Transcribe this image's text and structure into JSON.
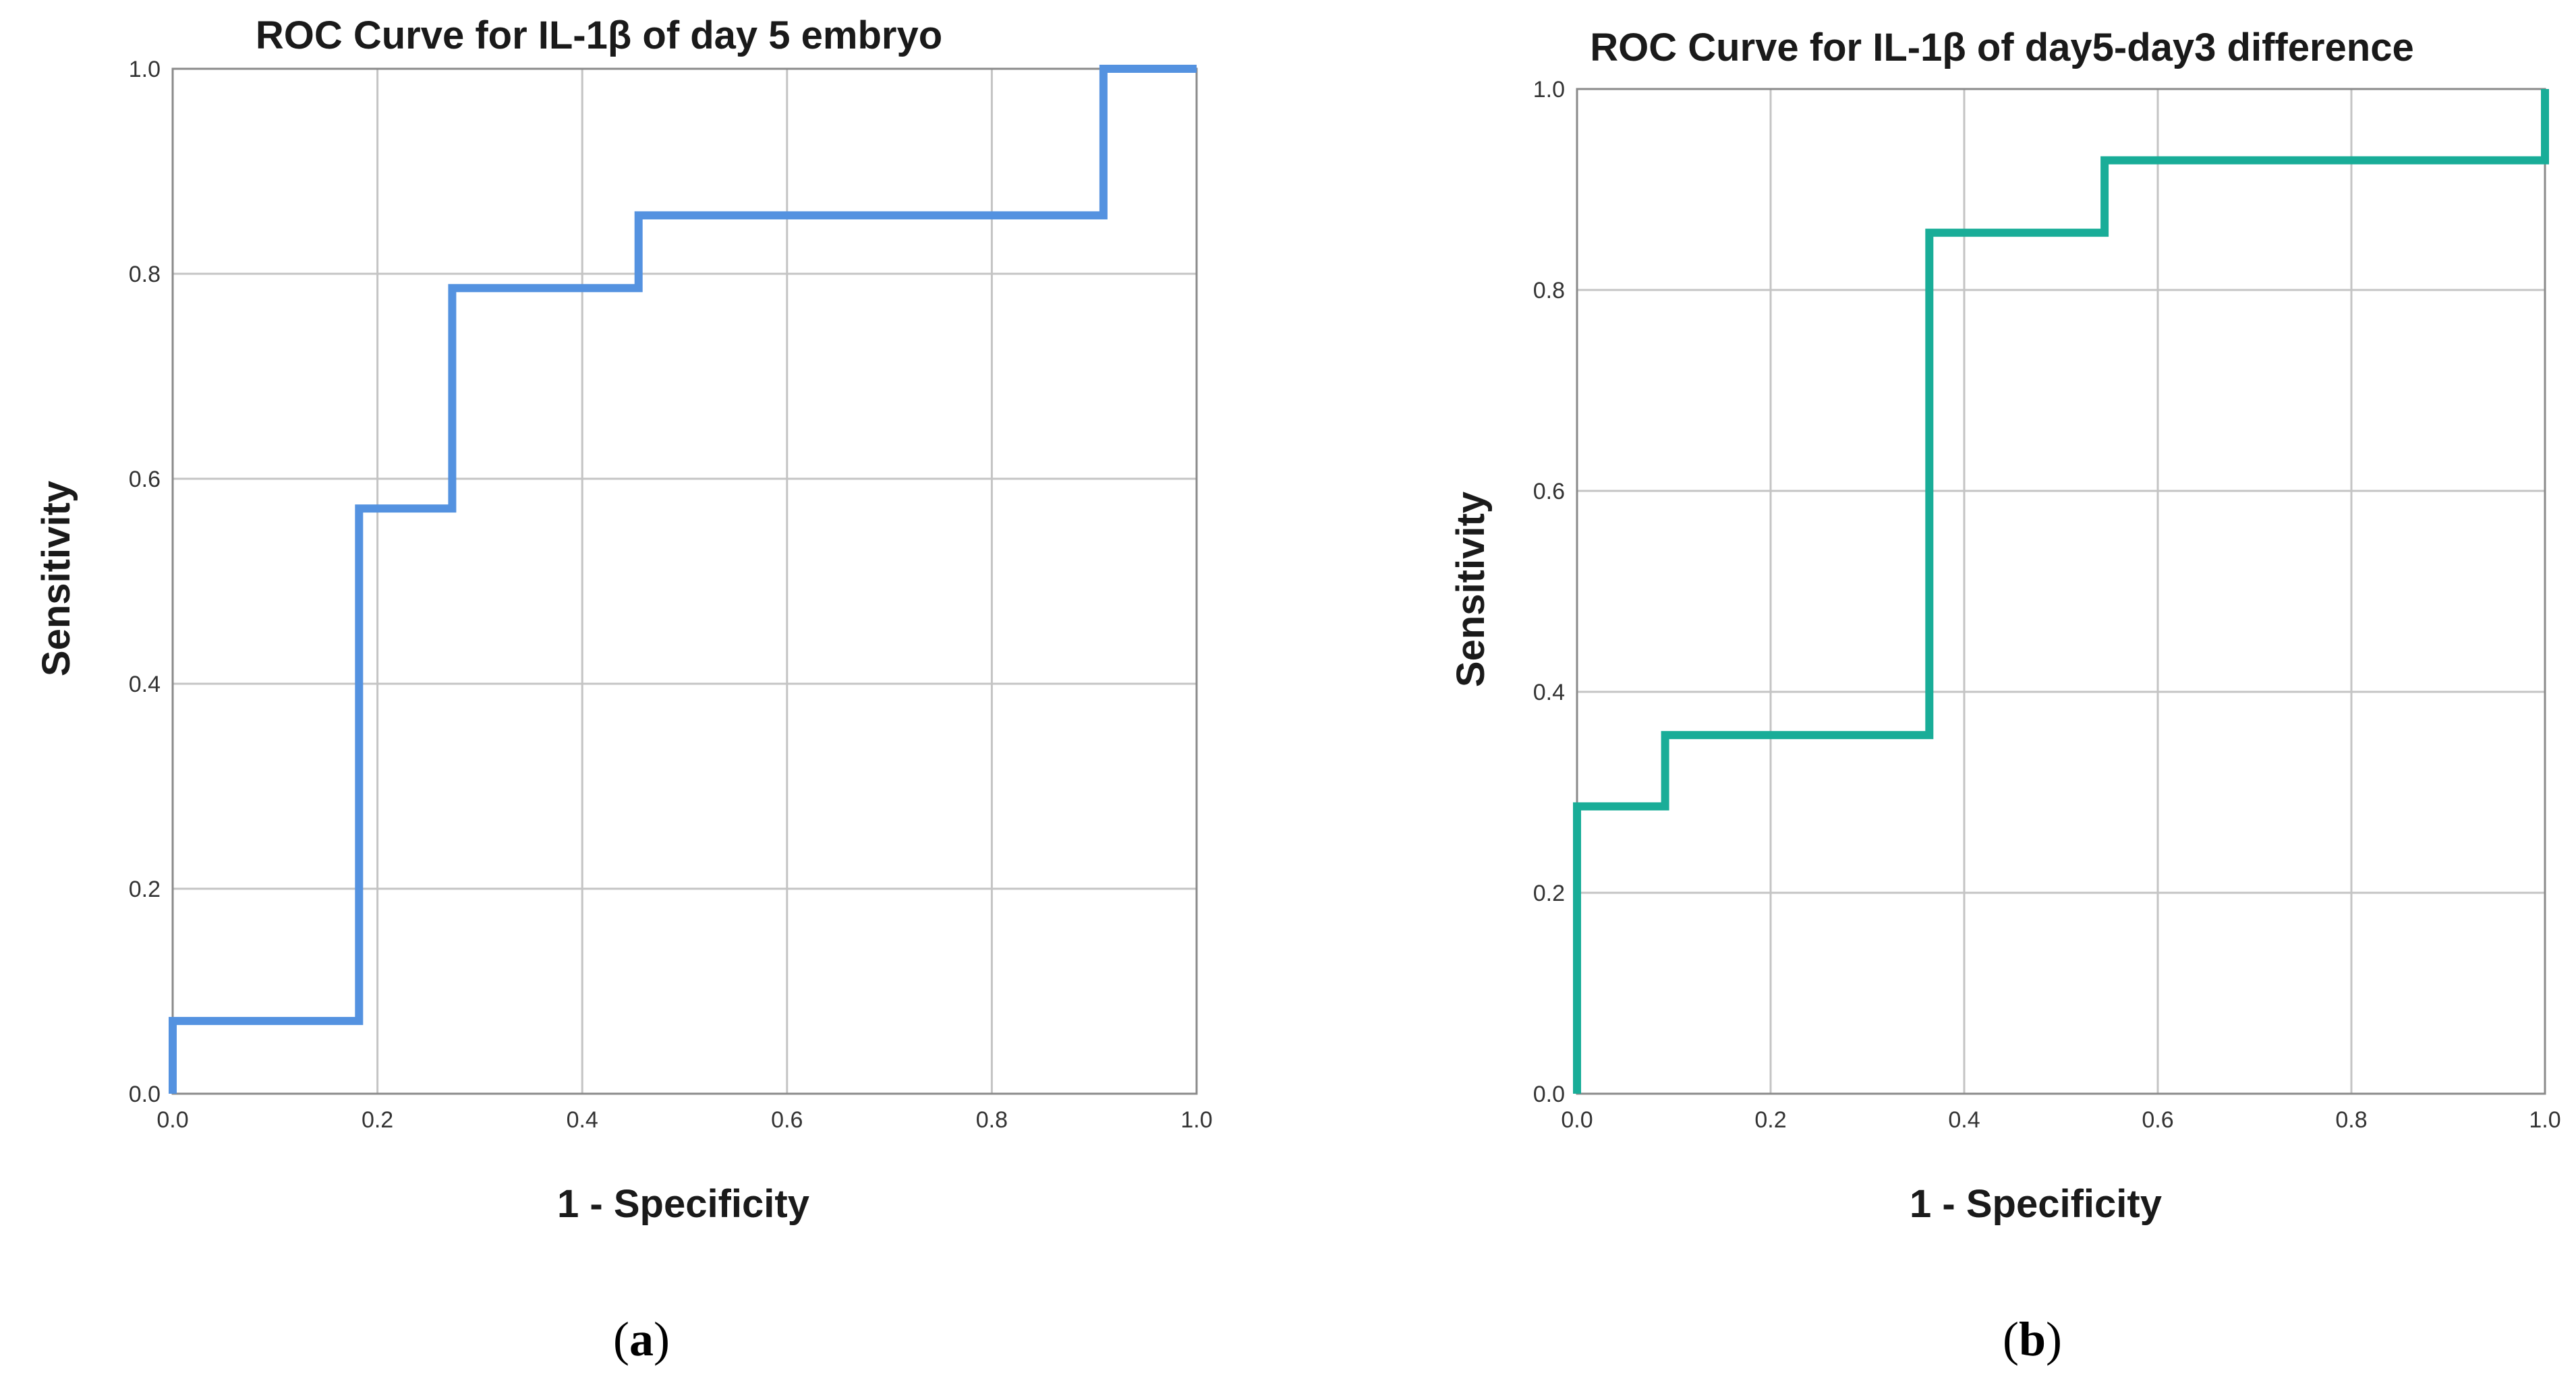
{
  "chart_data": [
    {
      "type": "line",
      "panel_label": "a",
      "title": "ROC Curve for IL-1β of day 5 embryo",
      "xlabel": "1 - Specificity",
      "ylabel": "Sensitivity",
      "xlim": [
        0,
        1
      ],
      "ylim": [
        0,
        1
      ],
      "x_ticks": [
        "0.0",
        "0.2",
        "0.4",
        "0.6",
        "0.8",
        "1.0"
      ],
      "y_ticks": [
        "0.0",
        "0.2",
        "0.4",
        "0.6",
        "0.8",
        "1.0"
      ],
      "grid": true,
      "line_color": "#5492e0",
      "series": [
        {
          "name": "IL-1β day 5",
          "x": [
            0.0,
            0.0,
            0.182,
            0.182,
            0.273,
            0.273,
            0.455,
            0.455,
            0.909,
            0.909,
            1.0
          ],
          "y": [
            0.0,
            0.071,
            0.071,
            0.571,
            0.571,
            0.786,
            0.786,
            0.857,
            0.857,
            1.0,
            1.0
          ]
        }
      ]
    },
    {
      "type": "line",
      "panel_label": "b",
      "title": "ROC Curve for  IL-1β of day5-day3 difference",
      "xlabel": "1 - Specificity",
      "ylabel": "Sensitivity",
      "xlim": [
        0,
        1
      ],
      "ylim": [
        0,
        1
      ],
      "x_ticks": [
        "0.0",
        "0.2",
        "0.4",
        "0.6",
        "0.8",
        "1.0"
      ],
      "y_ticks": [
        "0.0",
        "0.2",
        "0.4",
        "0.6",
        "0.8",
        "1.0"
      ],
      "grid": true,
      "line_color": "#19ad98",
      "series": [
        {
          "name": "IL-1β day5-day3 difference",
          "x": [
            0.0,
            0.0,
            0.091,
            0.091,
            0.364,
            0.364,
            0.545,
            0.545,
            1.0,
            1.0
          ],
          "y": [
            0.0,
            0.286,
            0.286,
            0.357,
            0.357,
            0.857,
            0.857,
            0.929,
            0.929,
            1.0
          ]
        }
      ]
    }
  ]
}
